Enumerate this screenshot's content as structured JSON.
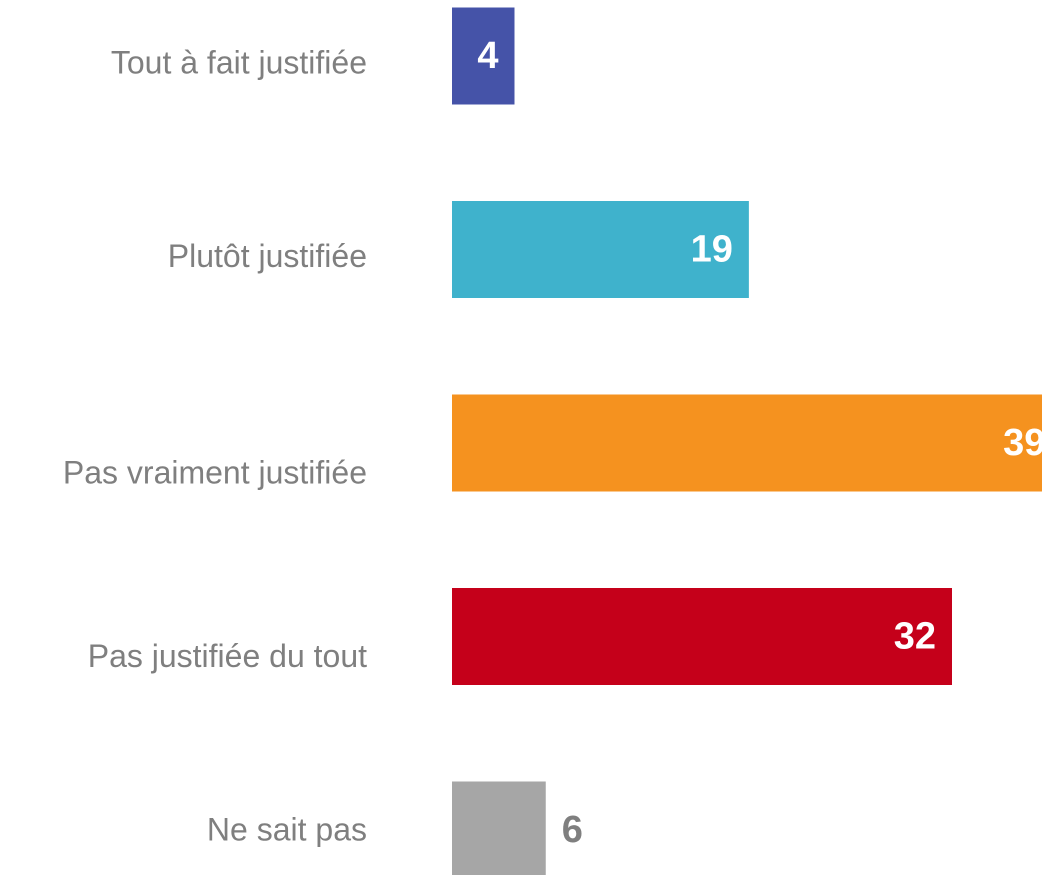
{
  "chart_data": {
    "type": "barh",
    "categories": [
      "Tout à fait justifiée",
      "Plutôt justifiée",
      "Pas vraiment justifiée",
      "Pas justifiée du tout",
      "Ne sait pas"
    ],
    "values": [
      4,
      19,
      39,
      32,
      6
    ],
    "colors": [
      "#4553a8",
      "#3fb2cc",
      "#f5921f",
      "#c5001a",
      "#a6a6a6"
    ],
    "label_colors": [
      "#ffffff",
      "#ffffff",
      "#ffffff",
      "#ffffff",
      "#7f7f7f"
    ]
  }
}
